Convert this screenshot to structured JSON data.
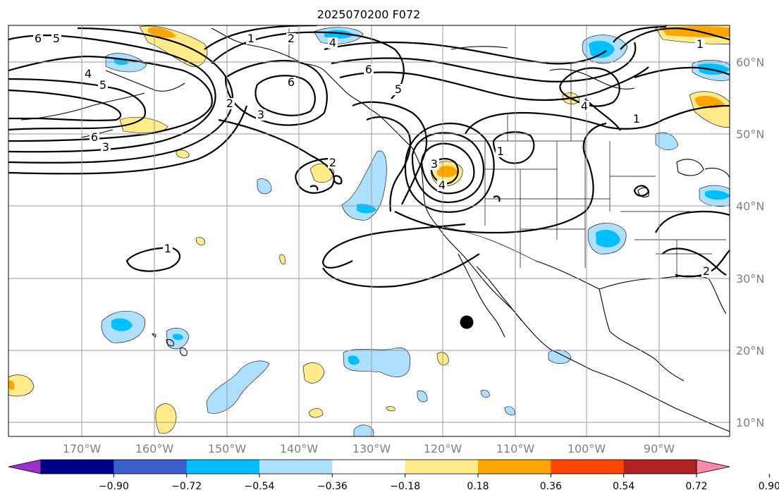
{
  "title": "2025070200 F072",
  "latitude_labels": [
    "60°N",
    "50°N",
    "40°N",
    "30°N",
    "20°N",
    "10°N"
  ],
  "longitude_labels": [
    "170°W",
    "160°W",
    "150°W",
    "140°W",
    "130°W",
    "120°W",
    "110°W",
    "100°W",
    "90°W"
  ],
  "colorbar": {
    "tick_labels": [
      "−0.90",
      "−0.72",
      "−0.54",
      "−0.36",
      "−0.18",
      "0.18",
      "0.36",
      "0.54",
      "0.72",
      "0.90"
    ],
    "colors": [
      "#9932cc",
      "#00008b",
      "#3a5fcd",
      "#00bfff",
      "#addfff",
      "#ffffff",
      "#ffeb8a",
      "#ffa500",
      "#ff4500",
      "#b22222",
      "#ff88aa"
    ]
  },
  "contour_labels": [
    {
      "id": "c6a",
      "text": "6"
    },
    {
      "id": "c5a",
      "text": "5"
    },
    {
      "id": "c4a",
      "text": "4"
    },
    {
      "id": "c5b",
      "text": "5"
    },
    {
      "id": "c6b",
      "text": "6"
    },
    {
      "id": "c3a",
      "text": "3"
    },
    {
      "id": "c1a",
      "text": "1"
    },
    {
      "id": "c2a",
      "text": "2"
    },
    {
      "id": "c4b",
      "text": "4"
    },
    {
      "id": "c6c",
      "text": "6"
    },
    {
      "id": "c2b",
      "text": "2"
    },
    {
      "id": "c3b",
      "text": "3"
    },
    {
      "id": "c6d",
      "text": "6"
    },
    {
      "id": "c5c",
      "text": "5"
    },
    {
      "id": "c2c",
      "text": "2"
    },
    {
      "id": "c3c",
      "text": "3"
    },
    {
      "id": "c4c",
      "text": "4"
    },
    {
      "id": "c1b",
      "text": "1"
    },
    {
      "id": "c1c",
      "text": "1"
    },
    {
      "id": "c1d",
      "text": "1"
    },
    {
      "id": "c2d",
      "text": "2"
    },
    {
      "id": "c1e",
      "text": "1"
    },
    {
      "id": "c4d",
      "text": "4"
    }
  ],
  "marker": {
    "name": "station-dot",
    "lon": -116.5,
    "lat": 23.7
  }
}
